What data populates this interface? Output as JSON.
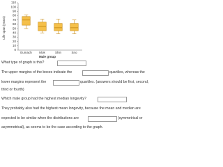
{
  "chart_data": {
    "type": "box",
    "y_label": "Life span (years)",
    "x_label": "Male group",
    "categories": [
      "Eumach",
      "Mok",
      "Shin",
      "Sno"
    ],
    "boxes": [
      {
        "whisker_low": 50,
        "q1": 58,
        "median": 70,
        "q3": 78,
        "whisker_high": 82
      },
      {
        "whisker_low": 40,
        "q1": 45,
        "median": 55,
        "q3": 65,
        "whisker_high": 72
      },
      {
        "whisker_low": 38,
        "q1": 45,
        "median": 52,
        "q3": 62,
        "whisker_high": 72
      },
      {
        "whisker_low": 38,
        "q1": 45,
        "median": 52,
        "q3": 62,
        "whisker_high": 70
      }
    ],
    "color": "#f5c04a",
    "edge_color": "#c68a14",
    "ylim": [
      0,
      110
    ],
    "yticks": [
      0,
      10,
      20,
      30,
      40,
      50,
      60,
      70,
      80,
      90,
      100,
      110
    ],
    "grid": false
  },
  "questions": {
    "q1": "What type of graph is this?",
    "q2": {
      "part1": "The upper margins of the boxes indicate the",
      "part2": "quartiles, whereas the",
      "part3": "lower margins represent the",
      "part4": "quartiles. (answers should be first, second,",
      "part5": "third or fourth)"
    },
    "q3": "Which male group had the highest median longevity?",
    "q4": {
      "part1": "They probably also had the highest mean longevity, because the mean and median are",
      "part2": "expected to be similar when the distributions are",
      "part3": "(symmetrical or",
      "part4": "asymmetrical), as seems to be the case according to the graph."
    }
  }
}
